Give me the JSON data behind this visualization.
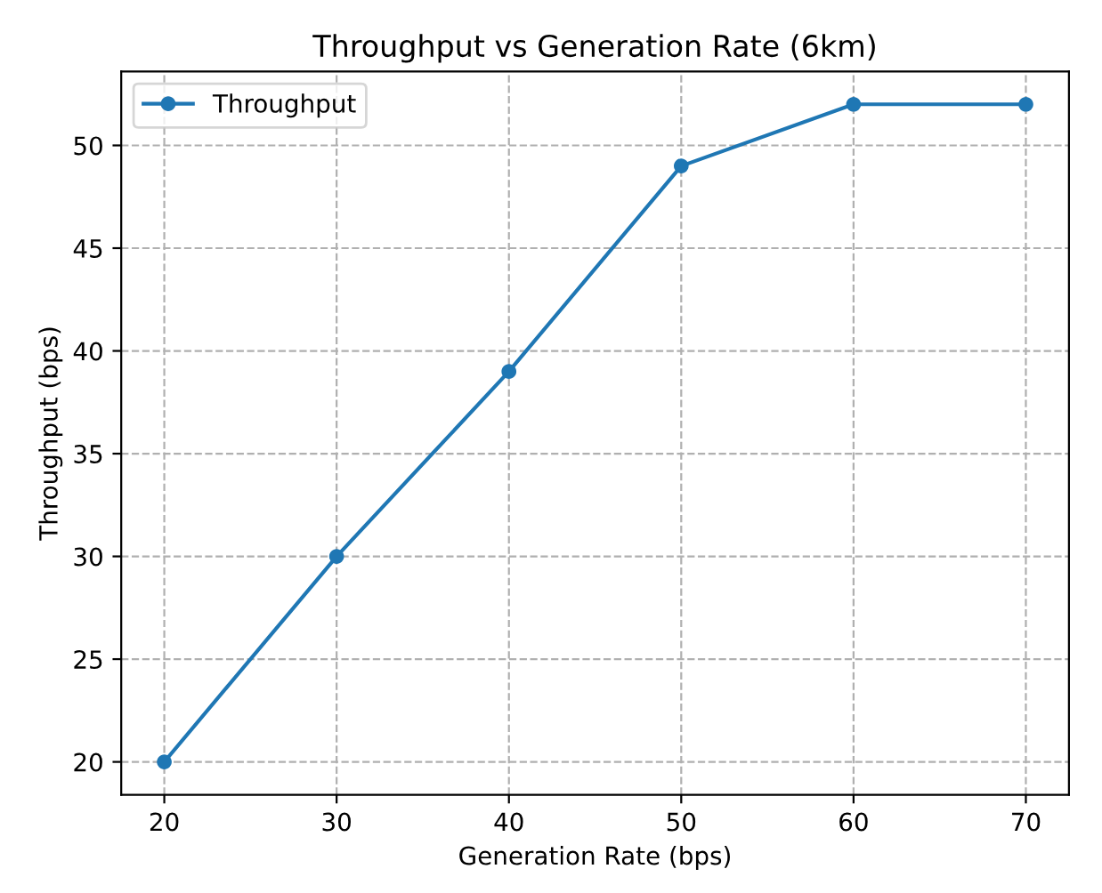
{
  "chart_data": {
    "type": "line",
    "title": "Throughput vs Generation Rate (6km)",
    "xlabel": "Generation Rate (bps)",
    "ylabel": "Throughput (bps)",
    "x": [
      20,
      30,
      40,
      50,
      60,
      70
    ],
    "series": [
      {
        "name": "Throughput",
        "color": "#1f77b4",
        "values": [
          20,
          30,
          39,
          49,
          52,
          52
        ]
      }
    ],
    "xlim": [
      17.5,
      72.5
    ],
    "xticks": [
      20,
      30,
      40,
      50,
      60,
      70
    ],
    "ylim": [
      18.4,
      53.6
    ],
    "yticks": [
      20,
      25,
      30,
      35,
      40,
      45,
      50
    ],
    "grid": true,
    "legend": "top left",
    "marker": "circle",
    "line_style": "solid"
  }
}
